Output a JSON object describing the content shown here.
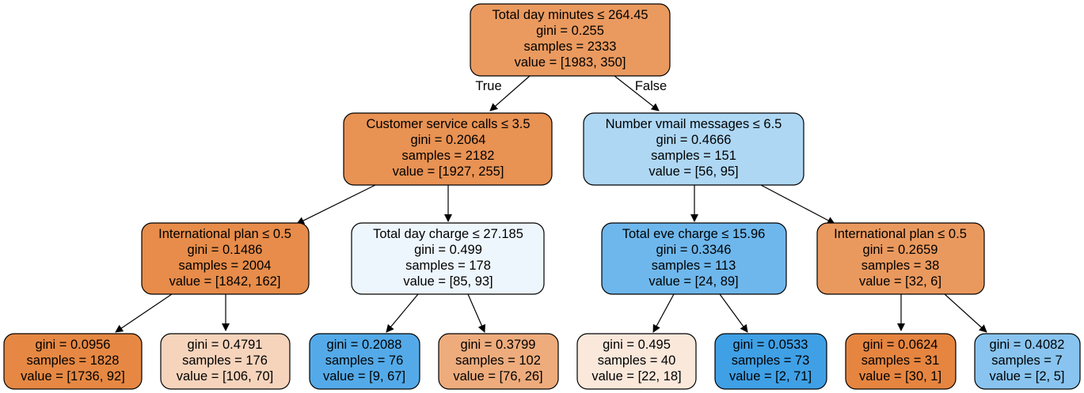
{
  "tree": {
    "edge_labels": {
      "true": "True",
      "false": "False"
    },
    "nodes": [
      {
        "id": "n0",
        "lines": [
          "Total day minutes ≤ 264.45",
          "gini = 0.255",
          "samples = 2333",
          "value = [1983, 350]"
        ],
        "fill": "#ea9a5f"
      },
      {
        "id": "n1",
        "lines": [
          "Customer service calls ≤ 3.5",
          "gini = 0.2064",
          "samples = 2182",
          "value = [1927, 255]"
        ],
        "fill": "#e89253"
      },
      {
        "id": "n2",
        "lines": [
          "Number vmail messages ≤ 6.5",
          "gini = 0.4666",
          "samples = 151",
          "value = [56, 95]"
        ],
        "fill": "#aed7f4"
      },
      {
        "id": "n3",
        "lines": [
          "International plan ≤ 0.5",
          "gini = 0.1486",
          "samples = 2004",
          "value = [1842, 162]"
        ],
        "fill": "#e78c4a"
      },
      {
        "id": "n4",
        "lines": [
          "Total day charge ≤ 27.185",
          "gini = 0.499",
          "samples = 178",
          "value = [85, 93]"
        ],
        "fill": "#eef6fd"
      },
      {
        "id": "n5",
        "lines": [
          "Total eve charge ≤ 15.96",
          "gini = 0.3346",
          "samples = 113",
          "value = [24, 89]"
        ],
        "fill": "#6eb7ec"
      },
      {
        "id": "n6",
        "lines": [
          "International plan ≤ 0.5",
          "gini = 0.2659",
          "samples = 38",
          "value = [32, 6]"
        ],
        "fill": "#ea995e"
      },
      {
        "id": "n7",
        "lines": [
          "gini = 0.0956",
          "samples = 1828",
          "value = [1736, 92]"
        ],
        "fill": "#e68843"
      },
      {
        "id": "n8",
        "lines": [
          "gini = 0.4791",
          "samples = 176",
          "value = [106, 70]"
        ],
        "fill": "#f6d4bc"
      },
      {
        "id": "n9",
        "lines": [
          "gini = 0.2088",
          "samples = 76",
          "value = [9, 67]"
        ],
        "fill": "#54aae8"
      },
      {
        "id": "n10",
        "lines": [
          "gini = 0.3799",
          "samples = 102",
          "value = [76, 26]"
        ],
        "fill": "#eeac7d"
      },
      {
        "id": "n11",
        "lines": [
          "gini = 0.495",
          "samples = 40",
          "value = [22, 18]"
        ],
        "fill": "#fae8db"
      },
      {
        "id": "n12",
        "lines": [
          "gini = 0.0533",
          "samples = 73",
          "value = [2, 71]"
        ],
        "fill": "#3fa0e6"
      },
      {
        "id": "n13",
        "lines": [
          "gini = 0.0624",
          "samples = 31",
          "value = [30, 1]"
        ],
        "fill": "#e68540"
      },
      {
        "id": "n14",
        "lines": [
          "gini = 0.4082",
          "samples = 7",
          "value = [2, 5]"
        ],
        "fill": "#88c4ef"
      }
    ]
  }
}
